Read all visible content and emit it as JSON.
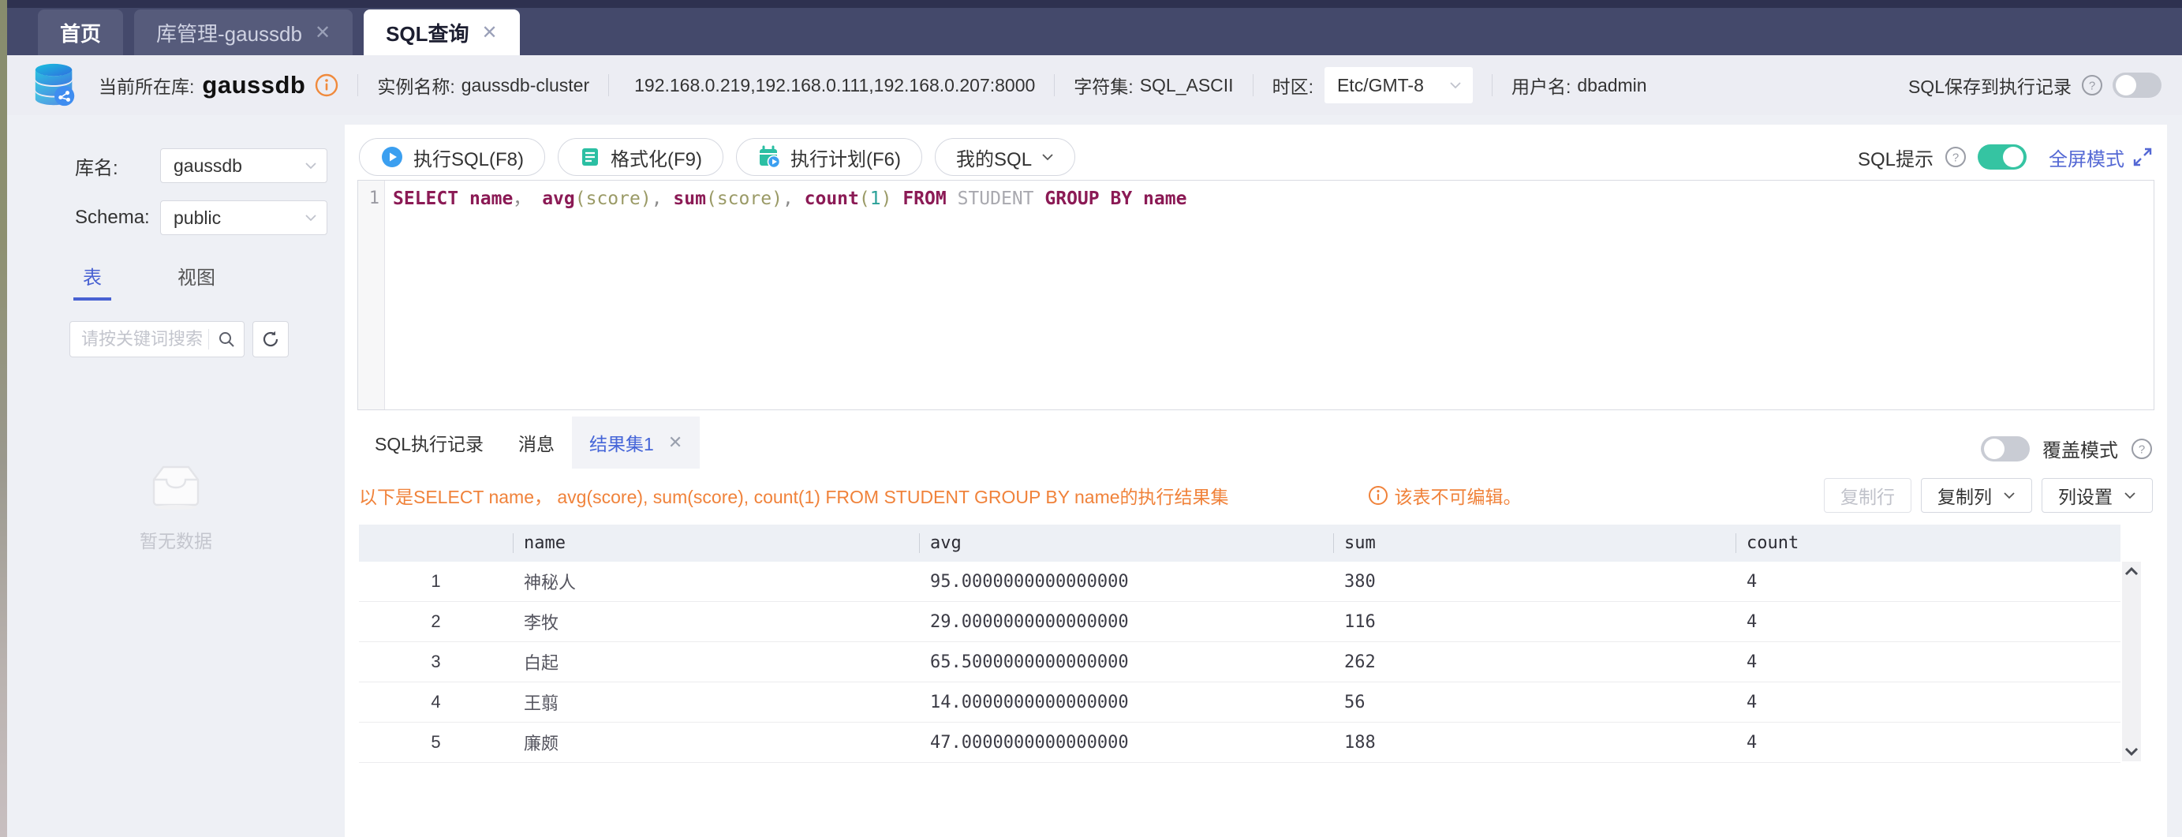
{
  "window_tabs": [
    {
      "label": "首页",
      "closable": false,
      "active": false
    },
    {
      "label": "库管理-gaussdb",
      "closable": true,
      "active": false
    },
    {
      "label": "SQL查询",
      "closable": true,
      "active": true
    }
  ],
  "header": {
    "current_db_label": "当前所在库:",
    "current_db": "gaussdb",
    "instance_label": "实例名称:",
    "instance_value": "gaussdb-cluster",
    "ip_list": "192.168.0.219,192.168.0.111,192.168.0.207:8000",
    "charset_label": "字符集:",
    "charset_value": "SQL_ASCII",
    "timezone_label": "时区:",
    "timezone_value": "Etc/GMT-8",
    "user_label": "用户名:",
    "user_value": "dbadmin",
    "save_record_label": "SQL保存到执行记录",
    "save_record_on": false
  },
  "sidebar": {
    "db_label": "库名:",
    "db_value": "gaussdb",
    "schema_label": "Schema:",
    "schema_value": "public",
    "tab_tables": "表",
    "tab_views": "视图",
    "search_placeholder": "请按关键词搜索",
    "empty_text": "暂无数据"
  },
  "toolbar": {
    "run_sql": "执行SQL(F8)",
    "format": "格式化(F9)",
    "explain": "执行计划(F6)",
    "my_sql": "我的SQL",
    "sql_hint_label": "SQL提示",
    "sql_hint_on": true,
    "fullscreen_label": "全屏模式"
  },
  "editor": {
    "line_number": "1",
    "sql_text": "SELECT name， avg(score), sum(score), count(1) FROM STUDENT GROUP BY name",
    "tokens": [
      {
        "t": "SELECT",
        "c": "kw"
      },
      {
        "t": " ",
        "c": "pl"
      },
      {
        "t": "name",
        "c": "kw"
      },
      {
        "t": "，",
        "c": "pun"
      },
      {
        "t": " ",
        "c": "pl"
      },
      {
        "t": "avg",
        "c": "kw"
      },
      {
        "t": "(",
        "c": "par"
      },
      {
        "t": "score",
        "c": "par"
      },
      {
        "t": ")",
        "c": "par"
      },
      {
        "t": ", ",
        "c": "pun"
      },
      {
        "t": "sum",
        "c": "kw"
      },
      {
        "t": "(",
        "c": "par"
      },
      {
        "t": "score",
        "c": "par"
      },
      {
        "t": ")",
        "c": "par"
      },
      {
        "t": ", ",
        "c": "pun"
      },
      {
        "t": "count",
        "c": "kw"
      },
      {
        "t": "(",
        "c": "par"
      },
      {
        "t": "1",
        "c": "num"
      },
      {
        "t": ")",
        "c": "par"
      },
      {
        "t": " ",
        "c": "pl"
      },
      {
        "t": "FROM",
        "c": "kw"
      },
      {
        "t": " ",
        "c": "pl"
      },
      {
        "t": "STUDENT",
        "c": "ident"
      },
      {
        "t": " ",
        "c": "pl"
      },
      {
        "t": "GROUP",
        "c": "kw"
      },
      {
        "t": " ",
        "c": "pl"
      },
      {
        "t": "BY",
        "c": "kw"
      },
      {
        "t": " ",
        "c": "pl"
      },
      {
        "t": "name",
        "c": "kw"
      }
    ]
  },
  "results": {
    "tab_history": "SQL执行记录",
    "tab_messages": "消息",
    "tab_resultset": "结果集1",
    "overwrite_label": "覆盖模式",
    "overwrite_on": false,
    "result_desc": "以下是SELECT name， avg(score), sum(score), count(1) FROM STUDENT GROUP BY name的执行结果集",
    "not_editable": "该表不可编辑。",
    "copy_row_label": "复制行",
    "copy_col_label": "复制列",
    "col_setting_label": "列设置",
    "table": {
      "columns": [
        "name",
        "avg",
        "sum",
        "count"
      ],
      "rows": [
        {
          "no": "1",
          "name": "神秘人",
          "avg": "95.0000000000000000",
          "sum": "380",
          "count": "4"
        },
        {
          "no": "2",
          "name": "李牧",
          "avg": "29.0000000000000000",
          "sum": "116",
          "count": "4"
        },
        {
          "no": "3",
          "name": "白起",
          "avg": "65.5000000000000000",
          "sum": "262",
          "count": "4"
        },
        {
          "no": "4",
          "name": "王翦",
          "avg": "14.0000000000000000",
          "sum": "56",
          "count": "4"
        },
        {
          "no": "5",
          "name": "廉颇",
          "avg": "47.0000000000000000",
          "sum": "188",
          "count": "4"
        }
      ]
    }
  },
  "colors": {
    "topbar_bg": "#44496b",
    "topbar_strip": "#2e3150",
    "active_tab_bg": "#ffffff",
    "header_bg": "#ecedf3",
    "page_bg": "#eef0f5",
    "accent_blue": "#4861d2",
    "link_blue": "#5468d4",
    "toggle_on": "#35c4a2",
    "toggle_off": "#c9ccd4",
    "orange": "#f0823a",
    "sql_keyword": "#8b1a55",
    "sql_paren": "#9a9a66",
    "sql_number": "#2aa198",
    "sql_ident": "#a9a9af",
    "table_header_bg": "#edf0f5",
    "logo_cyan": "#17b8d8",
    "logo_blue": "#2f6fe0"
  }
}
